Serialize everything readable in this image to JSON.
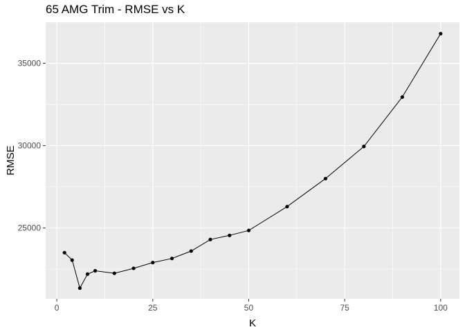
{
  "chart_data": {
    "type": "line",
    "title": "65 AMG Trim - RMSE vs K",
    "xlabel": "K",
    "ylabel": "RMSE",
    "xlim": [
      -2.9,
      104.9
    ],
    "ylim": [
      20700,
      37500
    ],
    "x_ticks": [
      0,
      25,
      50,
      75,
      100
    ],
    "x_tick_labels": [
      "0",
      "25",
      "50",
      "75",
      "100"
    ],
    "y_ticks": [
      25000,
      30000,
      35000
    ],
    "y_tick_labels": [
      "25000",
      "30000",
      "35000"
    ],
    "grid": true,
    "legend": "none",
    "colors": {
      "panel": "#ebebeb",
      "grid": "#ffffff",
      "line": "#000000"
    },
    "series": [
      {
        "x": [
          2,
          4,
          6,
          8,
          10,
          15,
          20,
          25,
          30,
          35,
          40,
          45,
          50,
          60,
          70,
          80,
          90,
          100
        ],
        "y": [
          23500,
          23050,
          21350,
          22200,
          22400,
          22250,
          22550,
          22900,
          23150,
          23600,
          24300,
          24550,
          24850,
          26300,
          28000,
          29950,
          32950,
          36800
        ]
      }
    ]
  }
}
